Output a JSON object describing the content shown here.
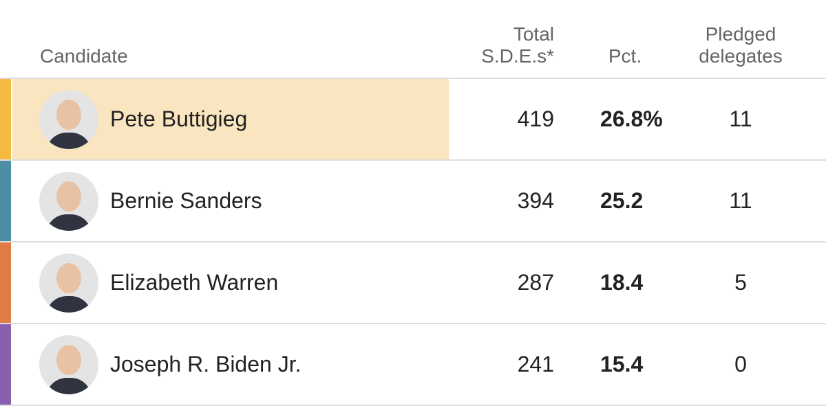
{
  "table": {
    "header": {
      "candidate": "Candidate",
      "votes": "Total S.D.E.s*",
      "pct": "Pct.",
      "delegates": "Pledged delegates"
    },
    "rows": [
      {
        "name": "Pete Buttigieg",
        "votes": "419",
        "pct": "26.8%",
        "delegates": "11",
        "color": "#f6b93f"
      },
      {
        "name": "Bernie Sanders",
        "votes": "394",
        "pct": "25.2",
        "delegates": "11",
        "color": "#4b8ea6"
      },
      {
        "name": "Elizabeth Warren",
        "votes": "287",
        "pct": "18.4",
        "delegates": "5",
        "color": "#e27c47"
      },
      {
        "name": "Joseph R. Biden Jr.",
        "votes": "241",
        "pct": "15.4",
        "delegates": "0",
        "color": "#8a5fae"
      }
    ]
  }
}
